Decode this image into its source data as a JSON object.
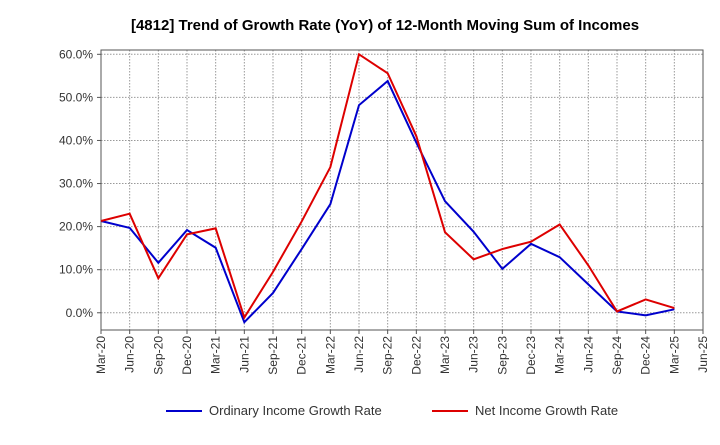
{
  "chart_data": {
    "type": "line",
    "title": "[4812]  Trend of Growth Rate (YoY) of 12-Month Moving Sum of Incomes",
    "xlabel": "",
    "ylabel": "",
    "categories": [
      "Mar-20",
      "Jun-20",
      "Sep-20",
      "Dec-20",
      "Mar-21",
      "Jun-21",
      "Sep-21",
      "Dec-21",
      "Mar-22",
      "Jun-22",
      "Sep-22",
      "Dec-22",
      "Mar-23",
      "Jun-23",
      "Sep-23",
      "Dec-23",
      "Mar-24",
      "Jun-24",
      "Sep-24",
      "Dec-24",
      "Mar-25",
      "Jun-25"
    ],
    "yticks": [
      "0.0%",
      "10.0%",
      "20.0%",
      "30.0%",
      "40.0%",
      "50.0%",
      "60.0%"
    ],
    "ytick_values": [
      0,
      10,
      20,
      30,
      40,
      50,
      60
    ],
    "ylim": [
      -4,
      61
    ],
    "grid": true,
    "legend_position": "bottom",
    "series": [
      {
        "name": "Ordinary Income Growth Rate",
        "color": "#0000cc",
        "values": [
          21.3,
          19.7,
          11.6,
          19.2,
          15.1,
          -2.2,
          4.6,
          14.8,
          25.2,
          48.2,
          53.8,
          39.5,
          25.9,
          18.8,
          10.2,
          16.0,
          12.9,
          6.6,
          0.3,
          -0.6,
          0.8,
          null
        ]
      },
      {
        "name": "Net Income Growth Rate",
        "color": "#dd0000",
        "values": [
          21.3,
          23.0,
          8.0,
          18.2,
          19.6,
          -1.1,
          9.5,
          21.2,
          33.8,
          60.0,
          55.6,
          41.0,
          18.7,
          12.4,
          14.8,
          16.5,
          20.5,
          11.0,
          0.3,
          3.1,
          1.1,
          null
        ]
      }
    ]
  }
}
